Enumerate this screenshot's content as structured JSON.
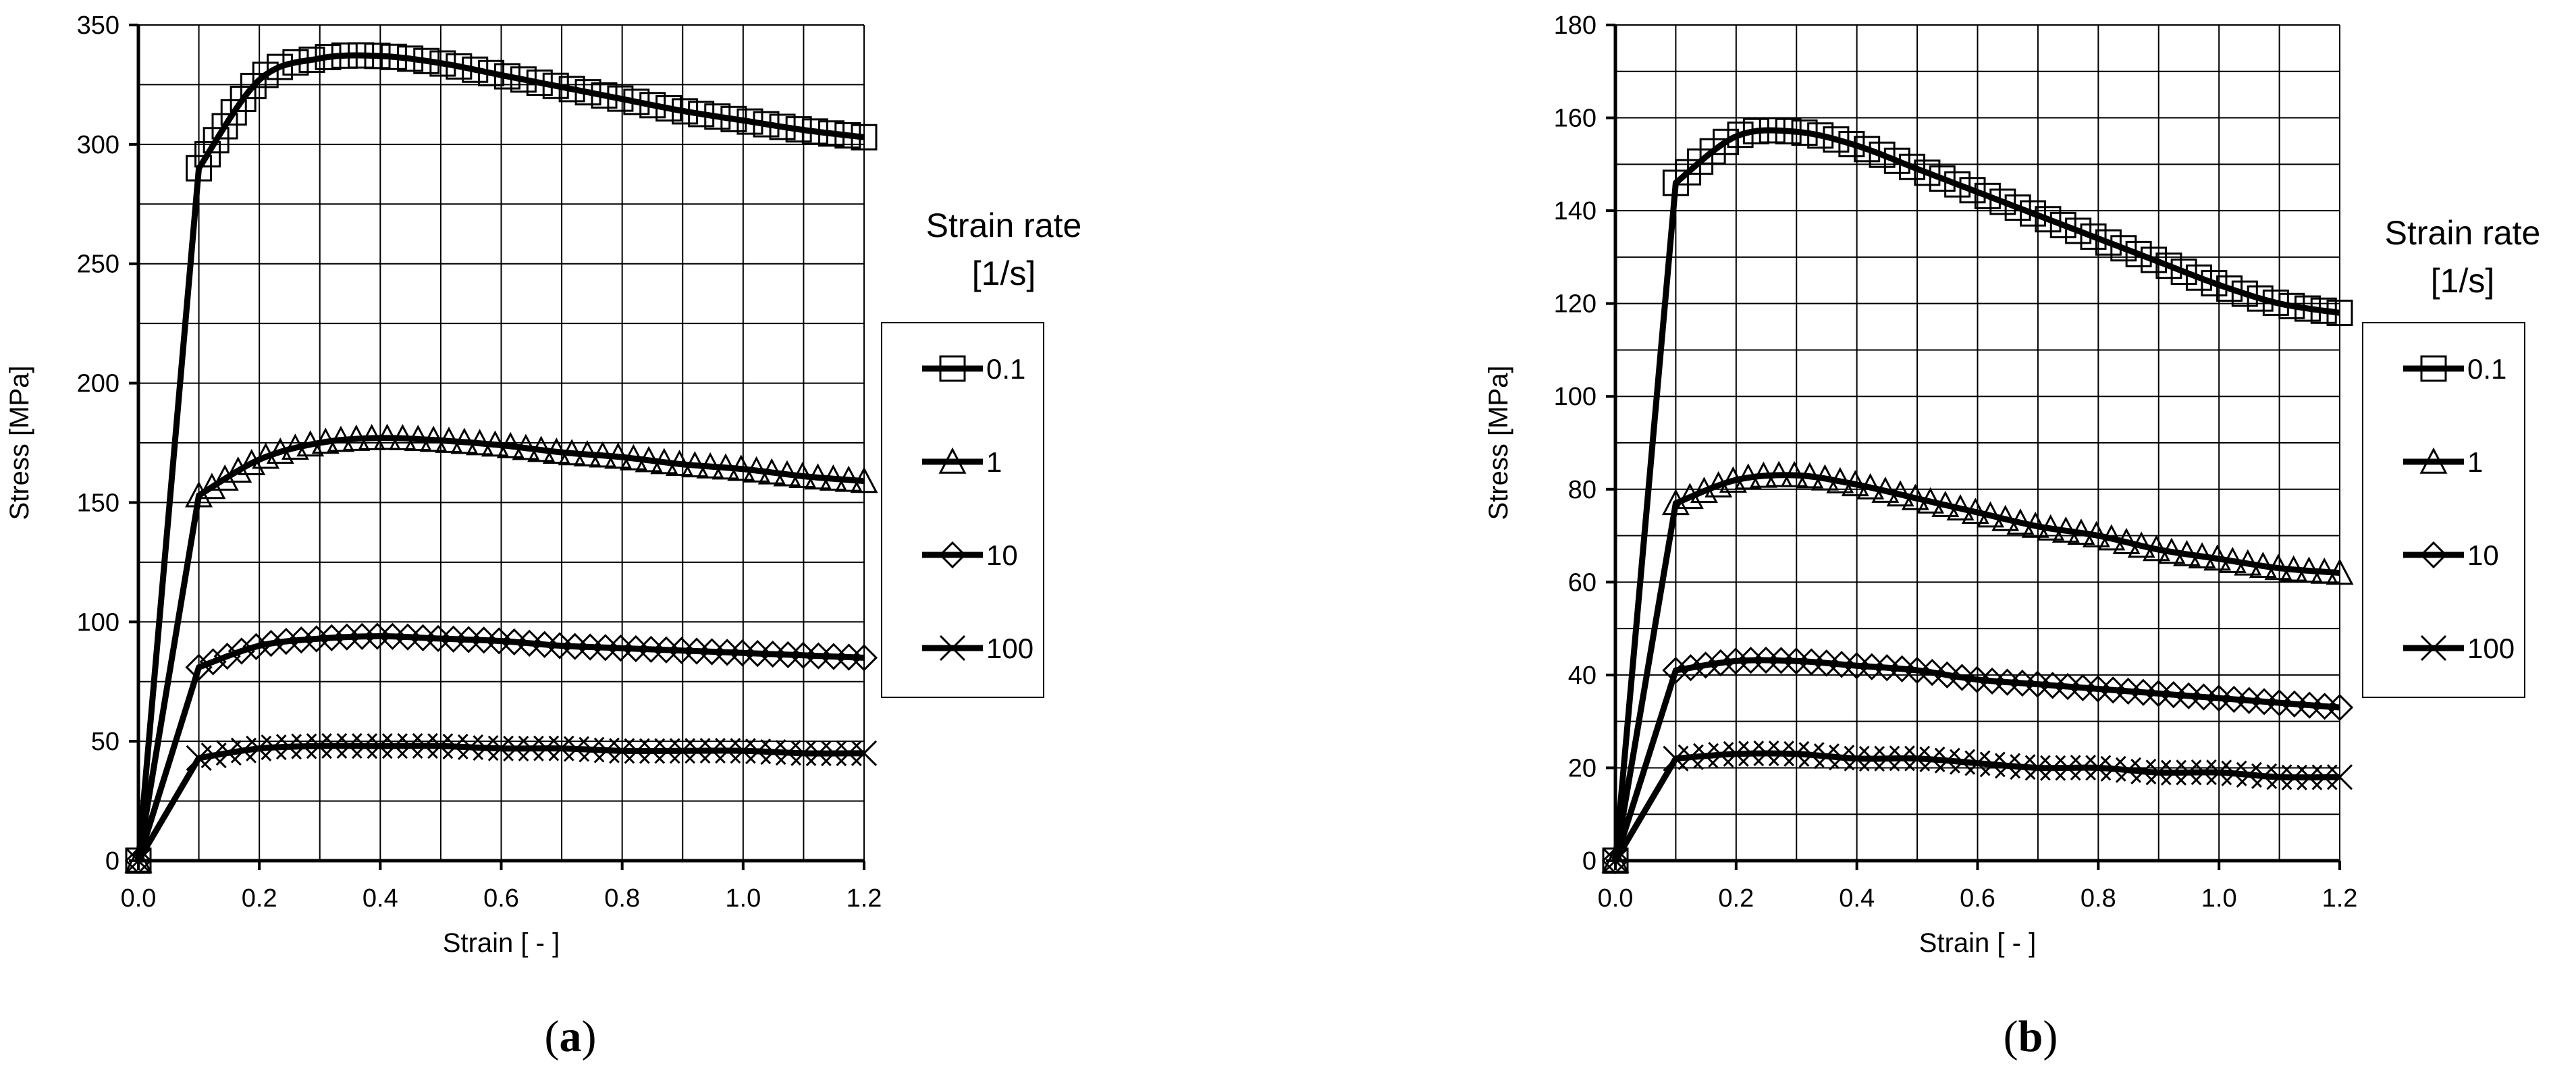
{
  "chart_data": [
    {
      "type": "line",
      "caption_letter": "a",
      "xlabel": "Strain [ - ]",
      "ylabel": "Stress [MPa]",
      "xlim": [
        0,
        1.2
      ],
      "ylim": [
        0,
        350
      ],
      "xticks": [
        "0.0",
        "0.2",
        "0.4",
        "0.6",
        "0.8",
        "1.0",
        "1.2"
      ],
      "yticks": [
        "0",
        "50",
        "100",
        "150",
        "200",
        "250",
        "300",
        "350"
      ],
      "grid": true,
      "legend": {
        "title_line1": "Strain rate",
        "title_line2": "[1/s]",
        "placement": "right"
      },
      "series": [
        {
          "name": "0.1",
          "marker": "square",
          "peak_strain": 0.39,
          "x": [
            0,
            0.1,
            0.2,
            0.3,
            0.4,
            0.5,
            0.6,
            0.7,
            0.8,
            0.9,
            1.0,
            1.1,
            1.2
          ],
          "y": [
            0,
            290,
            327,
            336,
            337,
            334,
            329,
            324,
            319,
            314,
            310,
            306,
            303
          ]
        },
        {
          "name": "1",
          "marker": "triangle",
          "peak_strain": 0.4,
          "x": [
            0,
            0.1,
            0.2,
            0.3,
            0.4,
            0.5,
            0.6,
            0.7,
            0.8,
            0.9,
            1.0,
            1.1,
            1.2
          ],
          "y": [
            0,
            153,
            168,
            175,
            177,
            176,
            174,
            171,
            169,
            166,
            164,
            161,
            159
          ]
        },
        {
          "name": "10",
          "marker": "diamond",
          "peak_strain": 0.4,
          "x": [
            0,
            0.1,
            0.2,
            0.3,
            0.4,
            0.5,
            0.6,
            0.7,
            0.8,
            0.9,
            1.0,
            1.1,
            1.2
          ],
          "y": [
            0,
            81,
            90,
            93,
            94,
            93,
            92,
            90,
            89,
            88,
            87,
            86,
            85
          ]
        },
        {
          "name": "100",
          "marker": "x",
          "peak_strain": 0.4,
          "x": [
            0,
            0.1,
            0.2,
            0.3,
            0.4,
            0.5,
            0.6,
            0.7,
            0.8,
            0.9,
            1.0,
            1.1,
            1.2
          ],
          "y": [
            0,
            43,
            47,
            48,
            48,
            48,
            47,
            47,
            46,
            46,
            46,
            45,
            45
          ]
        }
      ]
    },
    {
      "type": "line",
      "caption_letter": "b",
      "xlabel": "Strain [ - ]",
      "ylabel": "Stress [MPa]",
      "xlim": [
        0,
        1.2
      ],
      "ylim": [
        0,
        180
      ],
      "xticks": [
        "0.0",
        "0.2",
        "0.4",
        "0.6",
        "0.8",
        "1.0",
        "1.2"
      ],
      "yticks": [
        "0",
        "20",
        "40",
        "60",
        "80",
        "100",
        "120",
        "140",
        "160",
        "180"
      ],
      "grid": true,
      "legend": {
        "title_line1": "Strain rate",
        "title_line2": "[1/s]",
        "placement": "right"
      },
      "series": [
        {
          "name": "0.1",
          "marker": "square",
          "peak_strain": 0.27,
          "x": [
            0,
            0.1,
            0.2,
            0.3,
            0.4,
            0.5,
            0.6,
            0.7,
            0.8,
            0.9,
            1.0,
            1.1,
            1.2
          ],
          "y": [
            0,
            146,
            156,
            157,
            154,
            149,
            144,
            139,
            134,
            129,
            124,
            120,
            118
          ]
        },
        {
          "name": "1",
          "marker": "triangle",
          "peak_strain": 0.27,
          "x": [
            0,
            0.1,
            0.2,
            0.3,
            0.4,
            0.5,
            0.6,
            0.7,
            0.8,
            0.9,
            1.0,
            1.1,
            1.2
          ],
          "y": [
            0,
            77,
            82,
            83,
            81,
            78,
            75,
            72,
            70,
            67,
            65,
            63,
            62
          ]
        },
        {
          "name": "10",
          "marker": "diamond",
          "peak_strain": 0.27,
          "x": [
            0,
            0.1,
            0.2,
            0.3,
            0.4,
            0.5,
            0.6,
            0.7,
            0.8,
            0.9,
            1.0,
            1.1,
            1.2
          ],
          "y": [
            0,
            41,
            43,
            43,
            42,
            41,
            39,
            38,
            37,
            36,
            35,
            34,
            33
          ]
        },
        {
          "name": "100",
          "marker": "x",
          "peak_strain": 0.27,
          "x": [
            0,
            0.1,
            0.2,
            0.3,
            0.4,
            0.5,
            0.6,
            0.7,
            0.8,
            0.9,
            1.0,
            1.1,
            1.2
          ],
          "y": [
            0,
            22,
            23,
            23,
            22,
            22,
            21,
            20,
            20,
            19,
            19,
            18,
            18
          ]
        }
      ]
    }
  ]
}
